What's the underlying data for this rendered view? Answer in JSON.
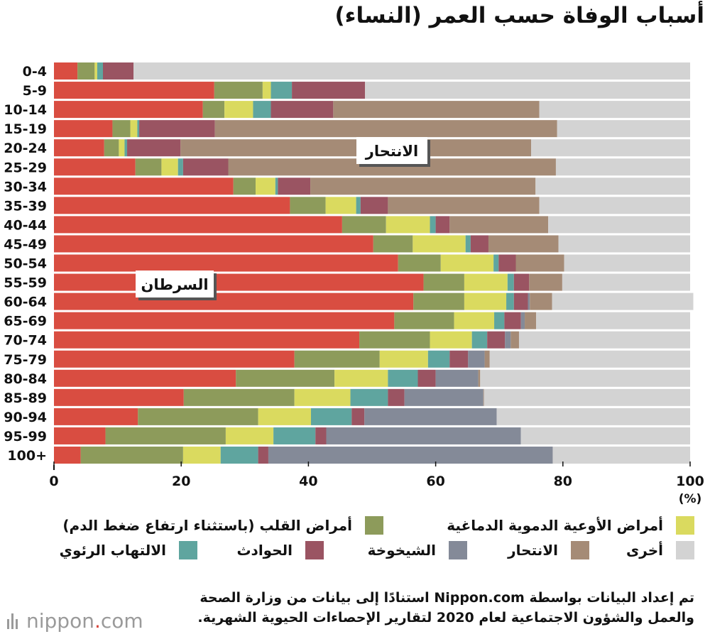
{
  "title": "أسباب الوفاة حسب العمر (النساء)",
  "colors": {
    "cancer": "#d94d41",
    "heart": "#8d9b5b",
    "cerebro": "#dada5f",
    "pneumonia": "#5fa59f",
    "accident": "#9a5462",
    "senility": "#848a98",
    "suicide": "#a58b76",
    "other": "#d3d3d3"
  },
  "chart_data": {
    "type": "bar",
    "orientation": "horizontal",
    "stacked": true,
    "title": "أسباب الوفاة حسب العمر (النساء)",
    "xlabel": "(%)",
    "xlim": [
      0,
      100
    ],
    "x_ticks": [
      "0",
      "20",
      "40",
      "60",
      "80",
      "100"
    ],
    "categories": [
      "0-4",
      "5-9",
      "10-14",
      "15-19",
      "20-24",
      "25-29",
      "30-34",
      "35-39",
      "40-44",
      "45-49",
      "50-54",
      "55-59",
      "60-64",
      "65-69",
      "70-74",
      "75-79",
      "80-84",
      "85-89",
      "90-94",
      "95-99",
      "100+"
    ],
    "series": [
      {
        "key": "cancer",
        "name": "السرطان",
        "values": [
          3.7,
          25.2,
          23.4,
          9.2,
          7.9,
          12.8,
          28.2,
          37.1,
          45.3,
          50.2,
          54.1,
          58.1,
          56.5,
          53.5,
          48.0,
          37.8,
          28.6,
          20.4,
          13.2,
          8.1,
          4.2
        ]
      },
      {
        "key": "heart",
        "name": "أمراض القلب (باستثناء ارتفاع ضغط الدم)",
        "values": [
          2.7,
          7.6,
          3.4,
          2.8,
          2.3,
          4.1,
          3.5,
          5.6,
          6.9,
          6.2,
          6.7,
          6.4,
          8.0,
          9.4,
          11.1,
          13.4,
          15.5,
          17.4,
          18.9,
          18.9,
          16.1
        ]
      },
      {
        "key": "cerebro",
        "name": "أمراض الأوعية الدموية الدماغية",
        "values": [
          0.4,
          1.3,
          4.5,
          1.1,
          0.9,
          2.6,
          3.1,
          4.8,
          6.9,
          8.3,
          8.3,
          6.8,
          6.6,
          6.3,
          6.6,
          7.6,
          8.4,
          8.8,
          8.3,
          7.5,
          5.9
        ]
      },
      {
        "key": "pneumonia",
        "name": "الالتهاب الرئوي",
        "values": [
          0.9,
          3.3,
          2.8,
          0.3,
          0.4,
          0.8,
          0.4,
          0.7,
          0.9,
          0.8,
          0.8,
          1.0,
          1.2,
          1.6,
          2.4,
          3.4,
          4.7,
          5.9,
          6.4,
          6.6,
          5.9
        ]
      },
      {
        "key": "accident",
        "name": "الحوادث",
        "values": [
          4.8,
          11.5,
          9.8,
          11.9,
          8.4,
          7.1,
          5.1,
          4.3,
          2.2,
          2.8,
          2.7,
          2.4,
          2.2,
          2.6,
          2.8,
          2.9,
          2.8,
          2.6,
          2.0,
          1.7,
          1.6
        ]
      },
      {
        "key": "senility",
        "name": "الشيخوخة",
        "values": [
          0,
          0,
          0,
          0,
          0,
          0,
          0,
          0,
          0,
          0,
          0,
          0,
          0.3,
          0.6,
          0.9,
          2.6,
          6.7,
          12.4,
          20.8,
          30.6,
          44.7
        ]
      },
      {
        "key": "suicide",
        "name": "الانتحار",
        "values": [
          0,
          0,
          32.4,
          53.8,
          55.1,
          51.5,
          35.4,
          23.8,
          15.5,
          11.0,
          7.6,
          5.2,
          3.5,
          1.8,
          1.3,
          0.8,
          0.3,
          0.1,
          0,
          0,
          0
        ]
      },
      {
        "key": "other",
        "name": "أخرى",
        "values": [
          87.5,
          51.1,
          23.7,
          20.9,
          25.0,
          21.1,
          24.3,
          23.7,
          22.3,
          20.7,
          19.8,
          20.1,
          22.2,
          24.2,
          26.9,
          31.5,
          33.0,
          32.4,
          30.4,
          26.6,
          21.6
        ]
      }
    ],
    "annotations": [
      {
        "text": "الانتحار",
        "series": "suicide"
      },
      {
        "text": "السرطان",
        "series": "cancer"
      }
    ]
  },
  "legend": {
    "rows": [
      [
        "cerebro",
        "heart"
      ],
      [
        "other",
        "suicide",
        "senility",
        "accident",
        "pneumonia"
      ]
    ]
  },
  "source": {
    "line1": "تم إعداد البيانات بواسطة Nippon.com استنادًا إلى بيانات من وزارة الصحة",
    "line2": "والعمل والشؤون الاجتماعية لعام 2020 لتقارير الإحصاءات الحيوية الشهرية."
  },
  "brand": {
    "name_part1": "nippon",
    "dot": ".",
    "name_part2": "com"
  }
}
